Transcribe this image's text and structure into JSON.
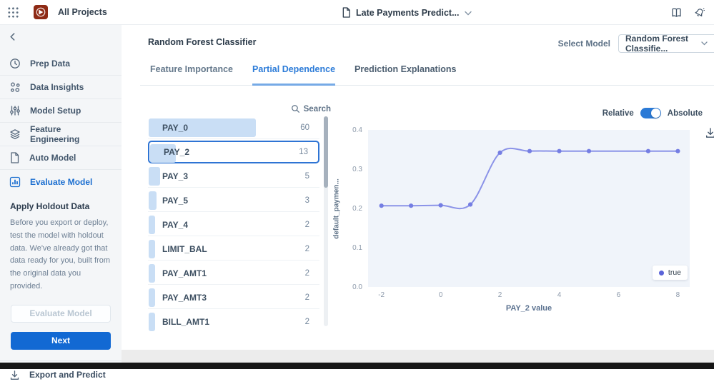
{
  "topbar": {
    "all_projects_label": "All Projects",
    "project_name": "Late Payments Predict..."
  },
  "sidebar": {
    "items": [
      {
        "label": "Prep Data",
        "icon": "clock-icon",
        "active": false
      },
      {
        "label": "Data Insights",
        "icon": "insights-icon",
        "active": false
      },
      {
        "label": "Model Setup",
        "icon": "sliders-icon",
        "active": false
      },
      {
        "label": "Feature Engineering",
        "icon": "layers-icon",
        "active": false
      },
      {
        "label": "Auto Model",
        "icon": "file-icon",
        "active": false
      },
      {
        "label": "Evaluate Model",
        "icon": "bar-chart-icon",
        "active": true
      }
    ],
    "holdout": {
      "title": "Apply Holdout Data",
      "description": "Before you export or deploy, test the model with holdout data. We've already got that data ready for you, built from the original data you provided.",
      "evaluate_button_label": "Evaluate Model",
      "next_button_label": "Next"
    },
    "export_label": "Export and Predict"
  },
  "main": {
    "title": "Random Forest Classifier",
    "select_model_label": "Select Model",
    "select_model_value": "Random Forest Classifie...",
    "tabs": [
      {
        "label": "Feature Importance",
        "active": false
      },
      {
        "label": "Partial Dependence",
        "active": true
      },
      {
        "label": "Prediction Explanations",
        "active": false
      }
    ],
    "search_label": "Search",
    "features": [
      {
        "name": "PAY_0",
        "value": 60,
        "selected": false
      },
      {
        "name": "PAY_2",
        "value": 13,
        "selected": true
      },
      {
        "name": "PAY_3",
        "value": 5,
        "selected": false
      },
      {
        "name": "PAY_5",
        "value": 3,
        "selected": false
      },
      {
        "name": "PAY_4",
        "value": 2,
        "selected": false
      },
      {
        "name": "LIMIT_BAL",
        "value": 2,
        "selected": false
      },
      {
        "name": "PAY_AMT1",
        "value": 2,
        "selected": false
      },
      {
        "name": "PAY_AMT3",
        "value": 2,
        "selected": false
      },
      {
        "name": "BILL_AMT1",
        "value": 2,
        "selected": false
      }
    ],
    "toggle": {
      "left_label": "Relative",
      "right_label": "Absolute",
      "knob_side": "right"
    }
  },
  "chart_data": {
    "type": "line",
    "title": "",
    "xlabel": "PAY_2 value",
    "ylabel": "default_paymen...",
    "x": [
      -2,
      -1,
      0,
      1,
      2,
      3,
      4,
      5,
      7,
      8
    ],
    "series": [
      {
        "name": "true",
        "values": [
          0.207,
          0.207,
          0.208,
          0.21,
          0.342,
          0.346,
          0.346,
          0.346,
          0.346,
          0.346
        ]
      }
    ],
    "xlim": [
      -2.45,
      8.4
    ],
    "ylim": [
      0,
      0.4
    ],
    "xticks": [
      -2,
      0,
      2,
      4,
      6,
      8
    ],
    "yticks": [
      "0.0",
      "0.1",
      "0.2",
      "0.3",
      "0.4"
    ],
    "legend": [
      "true"
    ],
    "legend_position": "bottom-right",
    "grid": false,
    "line_color": "#8b93e8",
    "point_color": "#757ee3",
    "legend_dot_color": "#5a63d8",
    "plot_bg": "#f0f4fa"
  },
  "colors": {
    "accent_blue": "#1269d3",
    "active_tab": "#2d7cd8",
    "importance_bar": "#c9def5",
    "selected_row_border": "#2e74d4",
    "logo_red": "#8e2a15"
  }
}
